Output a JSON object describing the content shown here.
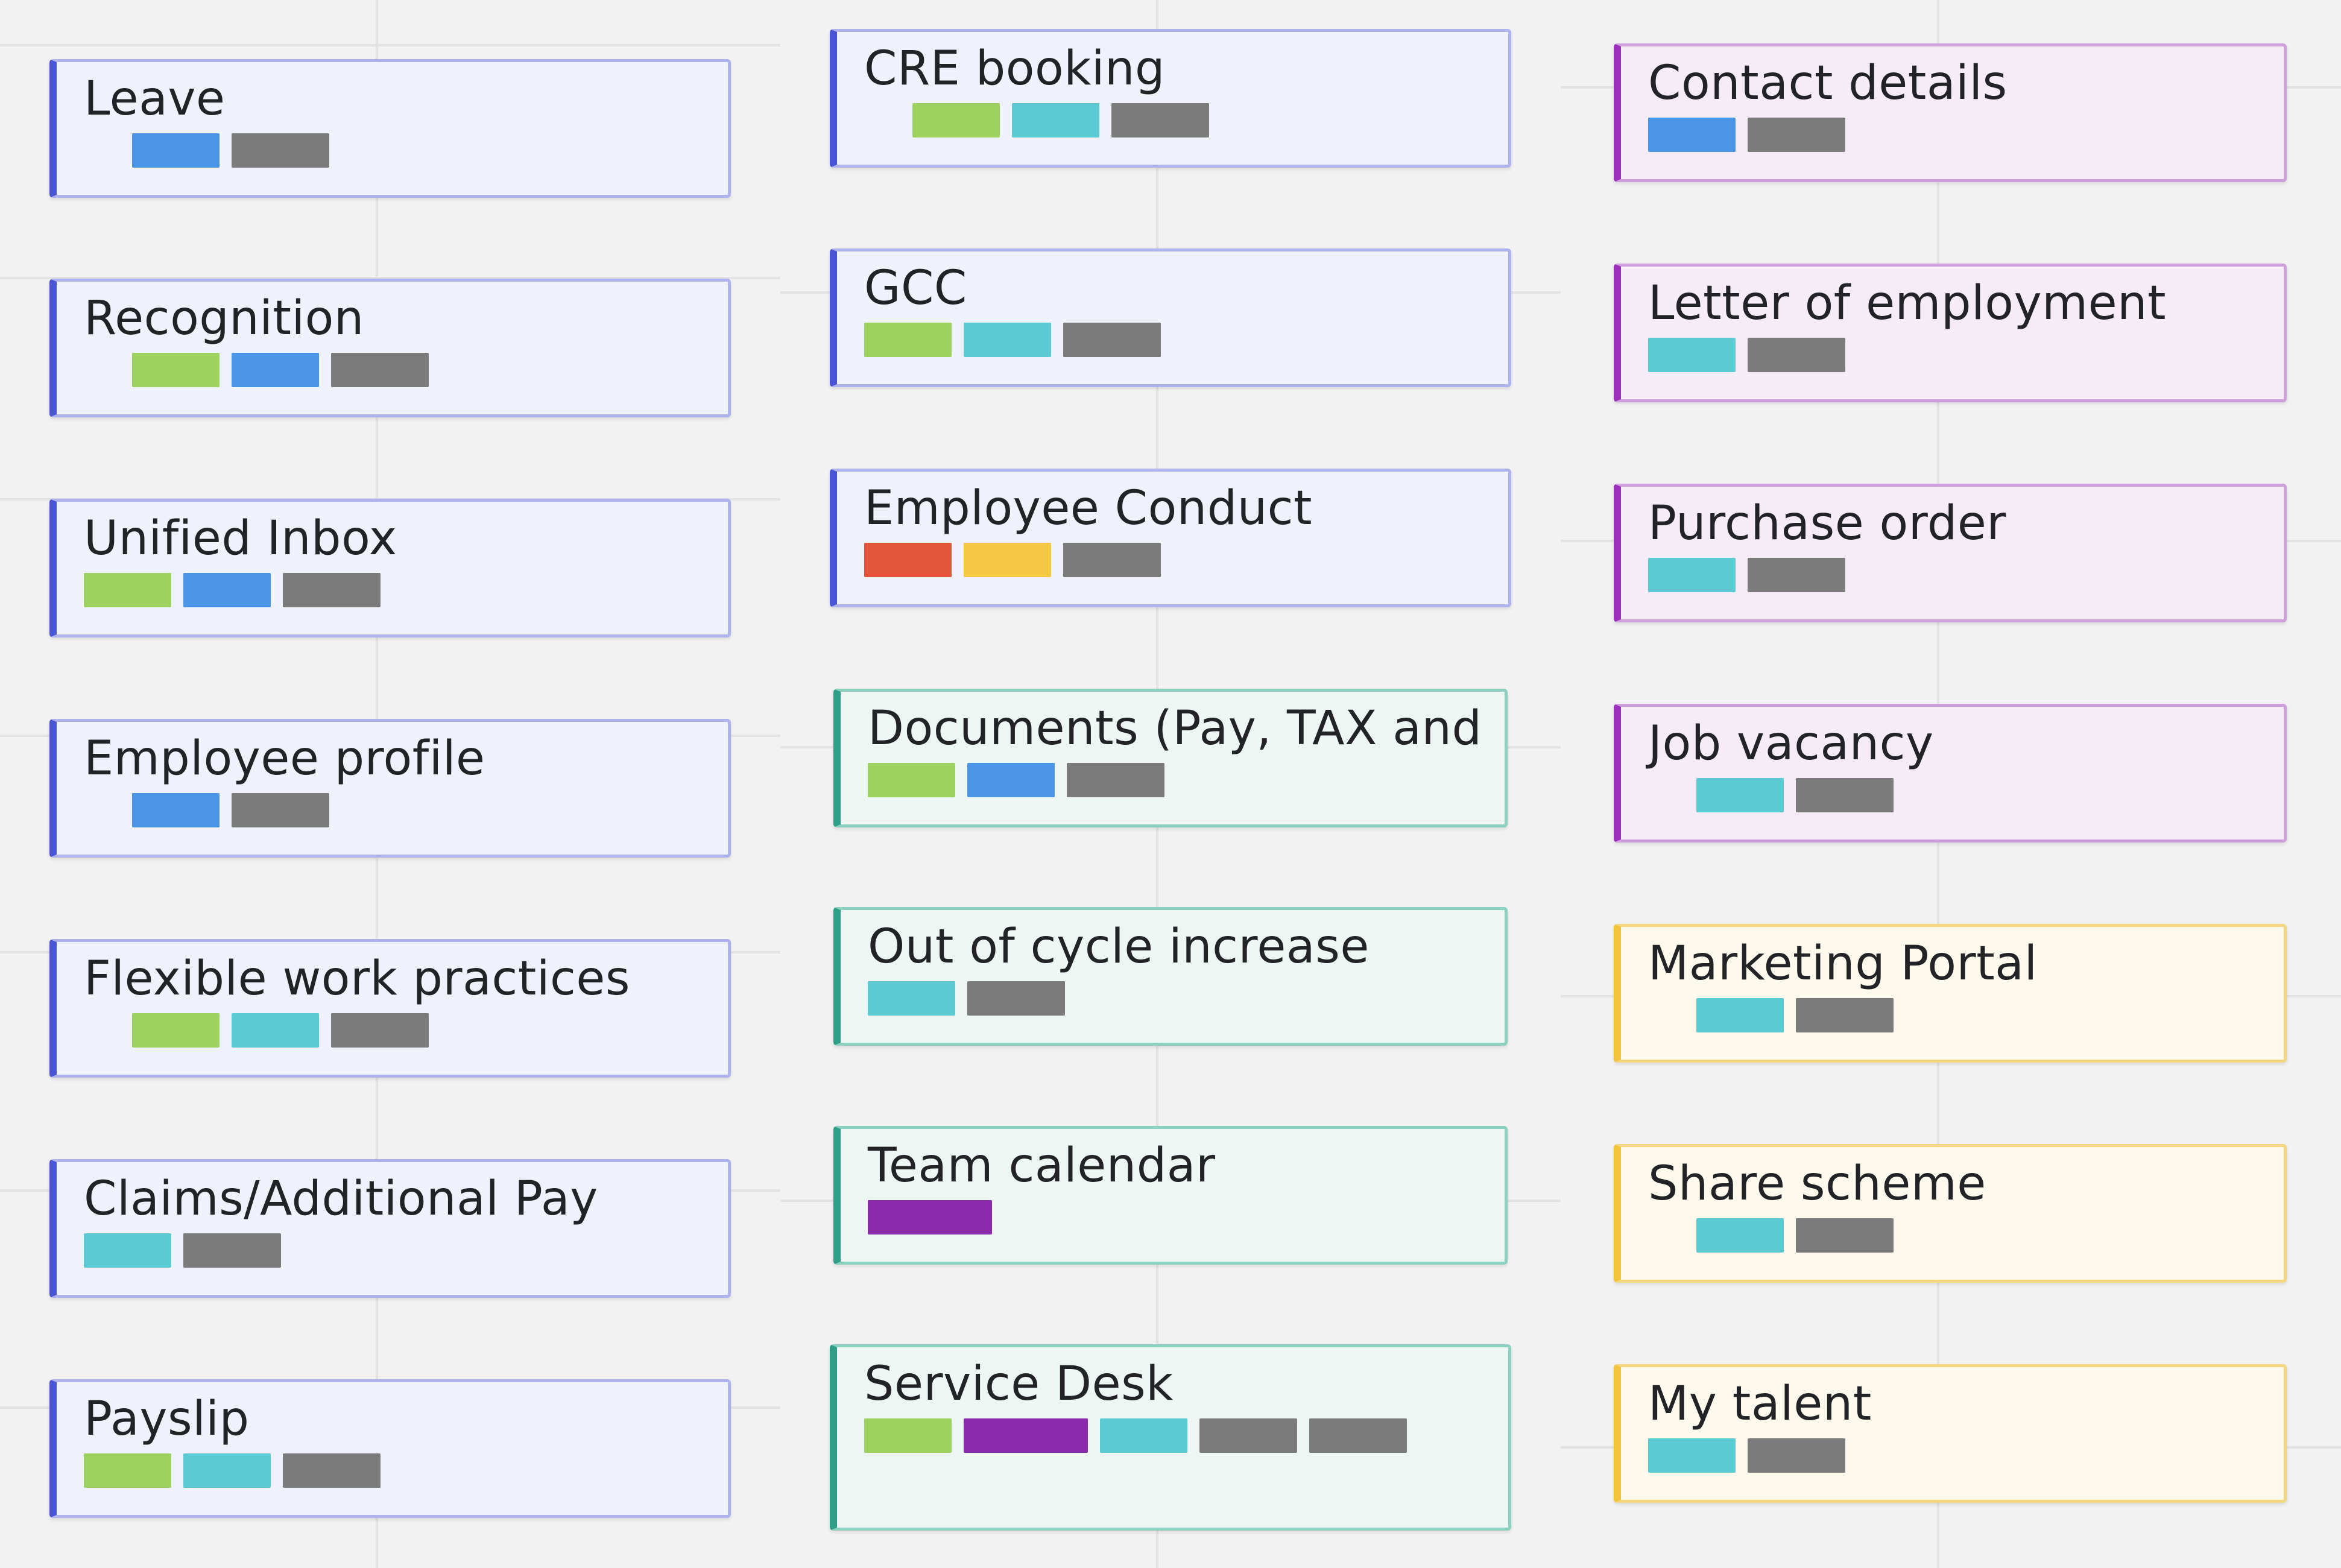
{
  "colors": {
    "green": "#9dd160",
    "blue": "#4a95e6",
    "teal": "#5ccad3",
    "gray": "#7b7b7b",
    "red": "#e2553a",
    "yellow": "#f4c845",
    "purple": "#8b2aab"
  },
  "columns": [
    {
      "cards": [
        {
          "title": "Leave",
          "theme": "blue",
          "tags": [
            "blue",
            "gray"
          ]
        },
        {
          "title": "Recognition",
          "theme": "blue",
          "tags": [
            "green",
            "blue",
            "gray"
          ]
        },
        {
          "title": "Unified Inbox",
          "theme": "blue",
          "tags": [
            "green",
            "blue",
            "gray"
          ]
        },
        {
          "title": "Employee profile",
          "theme": "blue",
          "tags": [
            "blue",
            "gray"
          ]
        },
        {
          "title": "Flexible work practices",
          "theme": "blue",
          "tags": [
            "green",
            "teal",
            "gray"
          ]
        },
        {
          "title": "Claims/Additional Pay",
          "theme": "blue",
          "tags": [
            "teal",
            "gray"
          ]
        },
        {
          "title": "Payslip",
          "theme": "blue",
          "tags": [
            "green",
            "teal",
            "gray"
          ]
        }
      ]
    },
    {
      "cards": [
        {
          "title": "CRE booking",
          "theme": "blue",
          "tags": [
            "green",
            "teal",
            "gray"
          ]
        },
        {
          "title": "GCC",
          "theme": "blue",
          "tags": [
            "green",
            "teal",
            "gray"
          ]
        },
        {
          "title": "Employee Conduct",
          "theme": "blue",
          "tags": [
            "red",
            "yellow",
            "gray"
          ]
        },
        {
          "title": "Documents (Pay, TAX and",
          "theme": "teal",
          "tags": [
            "green",
            "blue",
            "gray"
          ]
        },
        {
          "title": "Out of cycle increase",
          "theme": "teal",
          "tags": [
            "teal",
            "gray"
          ]
        },
        {
          "title": "Team calendar",
          "theme": "teal",
          "tags": [
            "purple"
          ]
        },
        {
          "title": "Service Desk",
          "theme": "teal",
          "tags": [
            "green",
            "purple",
            "teal",
            "gray",
            "gray"
          ]
        }
      ]
    },
    {
      "cards": [
        {
          "title": "Contact details",
          "theme": "purple",
          "tags": [
            "blue",
            "gray"
          ]
        },
        {
          "title": "Letter of employment",
          "theme": "purple",
          "tags": [
            "teal",
            "gray"
          ]
        },
        {
          "title": "Purchase order",
          "theme": "purple",
          "tags": [
            "teal",
            "gray"
          ]
        },
        {
          "title": "Job vacancy",
          "theme": "purple",
          "tags": [
            "teal",
            "gray"
          ]
        },
        {
          "title": "Marketing Portal",
          "theme": "yellow",
          "tags": [
            "teal",
            "gray"
          ]
        },
        {
          "title": "Share scheme",
          "theme": "yellow",
          "tags": [
            "teal",
            "gray"
          ]
        },
        {
          "title": "My talent",
          "theme": "yellow",
          "tags": [
            "teal",
            "gray"
          ]
        }
      ]
    }
  ]
}
